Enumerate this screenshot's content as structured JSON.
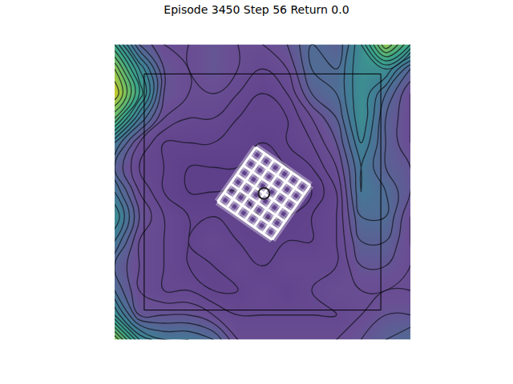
{
  "chart_data": {
    "type": "contour",
    "title": "Episode 3450 Step 56 Return 0.0",
    "x": [
      -1,
      -0.8333,
      -0.6667,
      -0.5,
      -0.3333,
      -0.1667,
      0,
      0.1667,
      0.3333,
      0.5,
      0.6667,
      0.8333,
      1
    ],
    "y": [
      -1,
      -0.8333,
      -0.6667,
      -0.5,
      -0.3333,
      -0.1667,
      0,
      0.1667,
      0.3333,
      0.5,
      0.6667,
      0.8333,
      1
    ],
    "cells": [
      [
        0.9,
        0.6,
        0.5,
        0.5,
        0.45,
        0.3,
        0.3,
        0.3,
        0.3,
        0.3,
        0.35,
        0.4,
        0.45
      ],
      [
        0.6,
        0.35,
        0.35,
        0.35,
        0.3,
        0.25,
        0.25,
        0.25,
        0.25,
        0.25,
        0.3,
        0.35,
        0.35
      ],
      [
        0.45,
        0.3,
        0.25,
        0.25,
        0.2,
        0.2,
        0.25,
        0.2,
        0.25,
        0.3,
        0.3,
        0.3,
        0.3
      ],
      [
        0.4,
        0.3,
        0.25,
        0.2,
        0.2,
        0.25,
        0.2,
        0.25,
        0.25,
        0.25,
        0.35,
        0.35,
        0.3
      ],
      [
        0.5,
        0.3,
        0.25,
        0.2,
        0.25,
        0.2,
        0.2,
        0.2,
        0.2,
        0.25,
        0.4,
        0.4,
        0.3
      ],
      [
        0.6,
        0.35,
        0.25,
        0.2,
        0.2,
        0.2,
        0.15,
        0.15,
        0.2,
        0.25,
        0.45,
        0.45,
        0.3
      ],
      [
        0.5,
        0.3,
        0.2,
        0.15,
        0.15,
        0.15,
        0.15,
        0.15,
        0.15,
        0.25,
        0.5,
        0.45,
        0.35
      ],
      [
        0.4,
        0.25,
        0.2,
        0.15,
        0.15,
        0.15,
        0.15,
        0.15,
        0.2,
        0.3,
        0.5,
        0.4,
        0.35
      ],
      [
        0.5,
        0.3,
        0.2,
        0.2,
        0.2,
        0.2,
        0.15,
        0.2,
        0.25,
        0.35,
        0.55,
        0.4,
        0.3
      ],
      [
        0.8,
        0.5,
        0.3,
        0.25,
        0.25,
        0.2,
        0.2,
        0.2,
        0.3,
        0.4,
        0.6,
        0.4,
        0.3
      ],
      [
        1.0,
        0.7,
        0.35,
        0.3,
        0.3,
        0.25,
        0.2,
        0.25,
        0.4,
        0.45,
        0.6,
        0.45,
        0.3
      ],
      [
        0.9,
        0.6,
        0.35,
        0.3,
        0.35,
        0.3,
        0.25,
        0.3,
        0.45,
        0.45,
        0.6,
        0.6,
        0.4
      ],
      [
        0.7,
        0.4,
        0.3,
        0.3,
        0.35,
        0.3,
        0.3,
        0.35,
        0.45,
        0.4,
        0.6,
        0.9,
        0.7
      ]
    ],
    "xlim": [
      -1,
      1
    ],
    "ylim": [
      -1,
      1
    ],
    "tick_labels": false,
    "boundary": [
      -0.8,
      0.8
    ],
    "agent": {
      "x": 0.01,
      "y": -0.01
    }
  }
}
